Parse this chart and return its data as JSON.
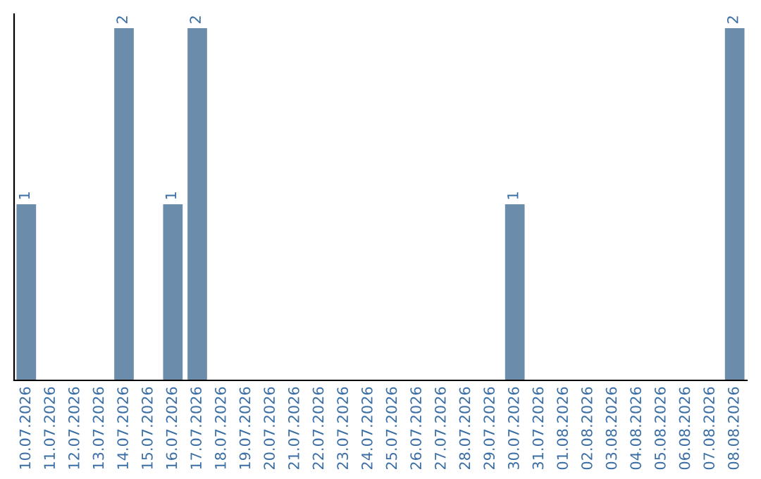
{
  "chart_data": {
    "type": "bar",
    "categories": [
      "10.07.2026",
      "11.07.2026",
      "12.07.2026",
      "13.07.2026",
      "14.07.2026",
      "15.07.2026",
      "16.07.2026",
      "17.07.2026",
      "18.07.2026",
      "19.07.2026",
      "20.07.2026",
      "21.07.2026",
      "22.07.2026",
      "23.07.2026",
      "24.07.2026",
      "25.07.2026",
      "26.07.2026",
      "27.07.2026",
      "28.07.2026",
      "29.07.2026",
      "30.07.2026",
      "31.07.2026",
      "01.08.2026",
      "02.08.2026",
      "03.08.2026",
      "04.08.2026",
      "05.08.2026",
      "06.08.2026",
      "07.08.2026",
      "08.08.2026"
    ],
    "values": [
      1,
      0,
      0,
      0,
      2,
      0,
      1,
      2,
      0,
      0,
      0,
      0,
      0,
      0,
      0,
      0,
      0,
      0,
      0,
      0,
      1,
      0,
      0,
      0,
      0,
      0,
      0,
      0,
      0,
      2
    ],
    "color": "#6b8cab",
    "value_labels": [
      "1",
      null,
      null,
      null,
      "2",
      null,
      "1",
      "2",
      null,
      null,
      null,
      null,
      null,
      null,
      null,
      null,
      null,
      null,
      null,
      null,
      "1",
      null,
      null,
      null,
      null,
      null,
      null,
      null,
      null,
      "2"
    ],
    "ylim": [
      0,
      2.08
    ],
    "tick_labels": "x",
    "grid": false,
    "legend": false
  }
}
